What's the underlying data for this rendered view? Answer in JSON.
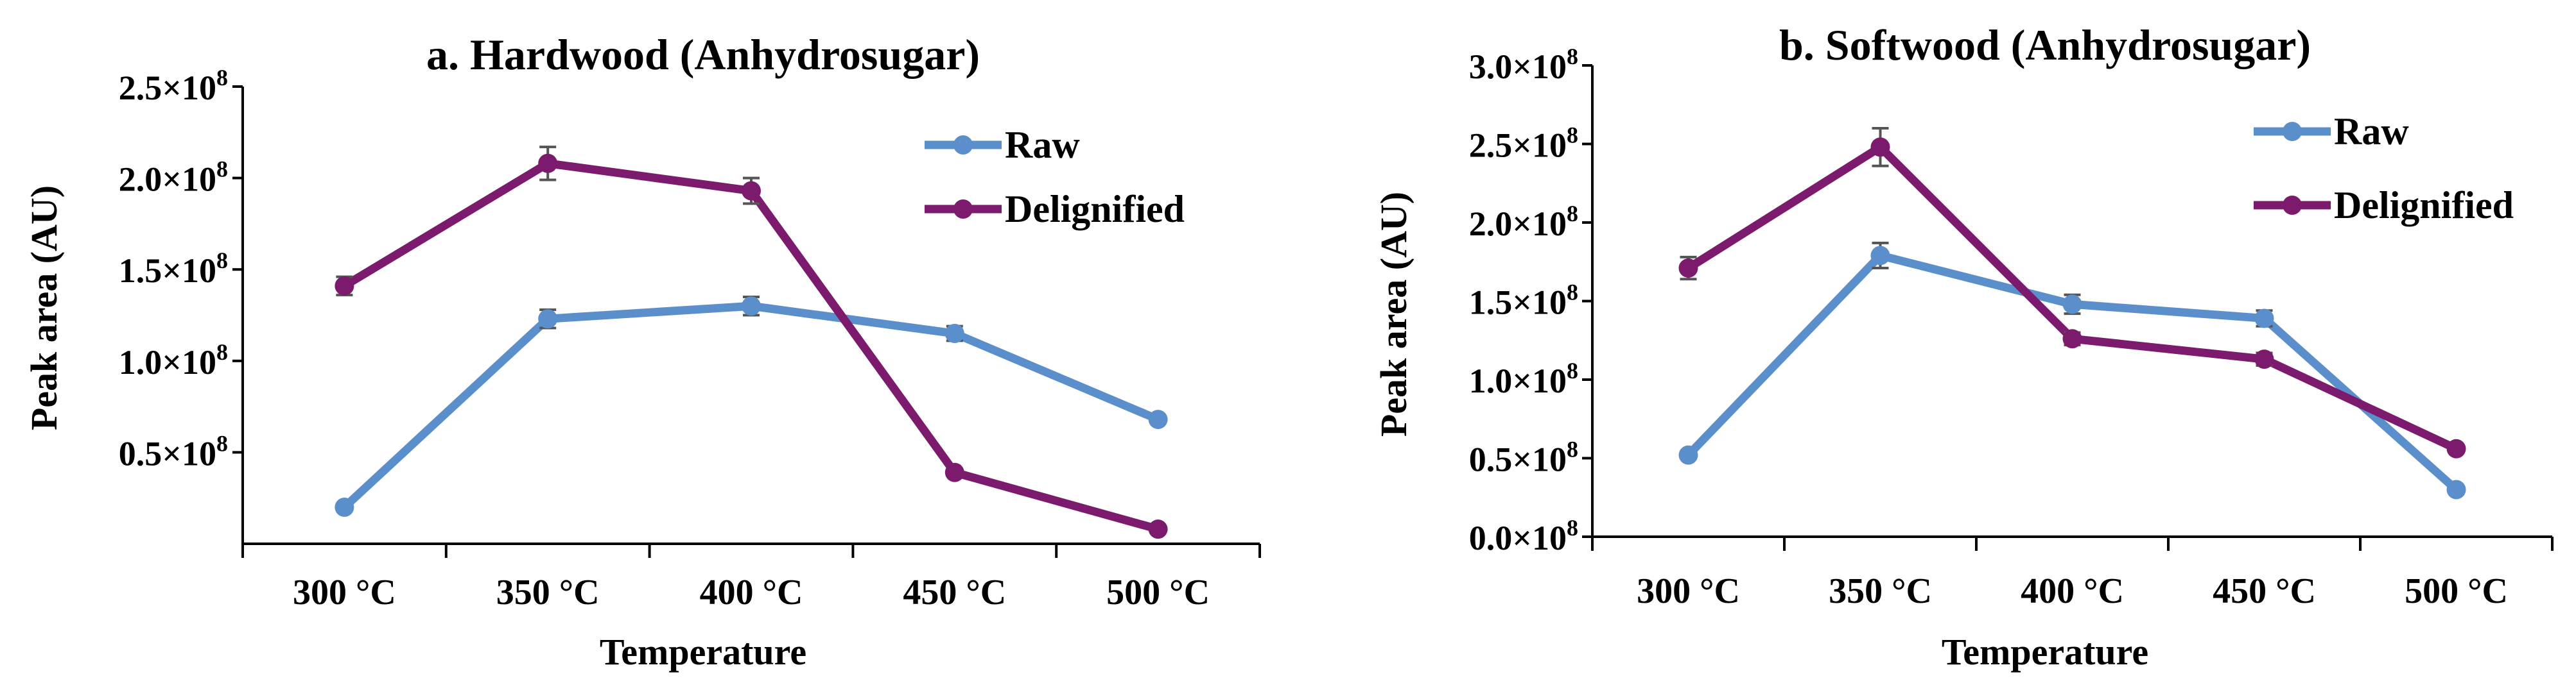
{
  "figure": {
    "caption": ""
  },
  "chart_data": [
    {
      "panel": "a",
      "type": "line",
      "title": "a. Hardwood (Anhydrosugar)",
      "xlabel": "Temperature",
      "ylabel": "Peak area (AU)",
      "categories": [
        "300 °C",
        "350 °C",
        "400 °C",
        "450 °C",
        "500 °C"
      ],
      "ylim": [
        0,
        250000000
      ],
      "y_ticks": [
        50000000,
        100000000,
        150000000,
        200000000,
        250000000
      ],
      "y_tick_labels": [
        {
          "mant": "0.5×10",
          "exp": "8"
        },
        {
          "mant": "1.0×10",
          "exp": "8"
        },
        {
          "mant": "1.5×10",
          "exp": "8"
        },
        {
          "mant": "2.0×10",
          "exp": "8"
        },
        {
          "mant": "2.5×10",
          "exp": "8"
        }
      ],
      "legend_position": "top-right",
      "series": [
        {
          "name": "Raw",
          "color": "#5b8fcb",
          "values": [
            20000000,
            123000000,
            130000000,
            115000000,
            68000000
          ],
          "errors": [
            0,
            5000000,
            5000000,
            4000000,
            0
          ]
        },
        {
          "name": "Delignified",
          "color": "#7c1b6e",
          "values": [
            141000000,
            208000000,
            193000000,
            39000000,
            8000000
          ],
          "errors": [
            5000000,
            9000000,
            7000000,
            0,
            0
          ]
        }
      ]
    },
    {
      "panel": "b",
      "type": "line",
      "title": "b. Softwood (Anhydrosugar)",
      "xlabel": "Temperature",
      "ylabel": "Peak area (AU)",
      "categories": [
        "300 °C",
        "350 °C",
        "400 °C",
        "450 °C",
        "500 °C"
      ],
      "ylim": [
        0,
        300000000
      ],
      "y_ticks": [
        0,
        50000000,
        100000000,
        150000000,
        200000000,
        250000000,
        300000000
      ],
      "y_tick_labels": [
        {
          "mant": "0.0×10",
          "exp": "8"
        },
        {
          "mant": "0.5×10",
          "exp": "8"
        },
        {
          "mant": "1.0×10",
          "exp": "8"
        },
        {
          "mant": "1.5×10",
          "exp": "8"
        },
        {
          "mant": "2.0×10",
          "exp": "8"
        },
        {
          "mant": "2.5×10",
          "exp": "8"
        },
        {
          "mant": "3.0×10",
          "exp": "8"
        }
      ],
      "legend_position": "top-right",
      "series": [
        {
          "name": "Raw",
          "color": "#5b8fcb",
          "values": [
            52000000,
            179000000,
            148000000,
            139000000,
            30000000
          ],
          "errors": [
            0,
            8000000,
            6000000,
            5000000,
            0
          ]
        },
        {
          "name": "Delignified",
          "color": "#7c1b6e",
          "values": [
            171000000,
            248000000,
            126000000,
            113000000,
            56000000
          ],
          "errors": [
            7000000,
            12000000,
            4000000,
            4000000,
            0
          ]
        }
      ]
    }
  ]
}
